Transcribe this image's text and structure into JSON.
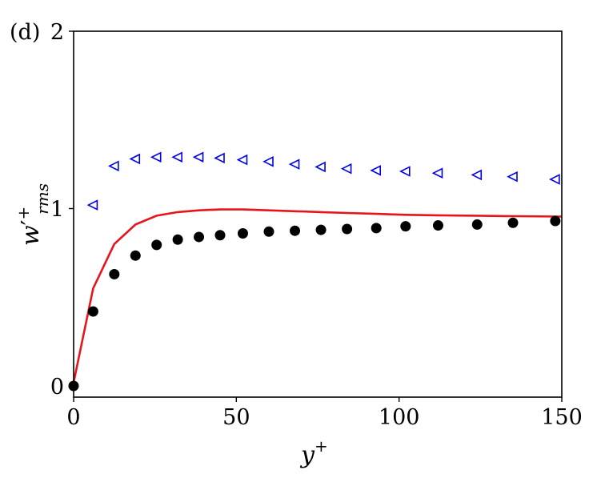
{
  "panel_label": "(d)",
  "chart_data": {
    "type": "scatter",
    "xlabel": "y+",
    "ylabel": "w'+rms",
    "xlim": [
      0,
      150
    ],
    "ylim": [
      -0.05,
      2.0
    ],
    "xticks": [
      0,
      50,
      100,
      150
    ],
    "yticks": [
      0,
      1,
      2
    ],
    "grid": false,
    "legend": "none",
    "series": [
      {
        "style": "line",
        "color": "#e8141c",
        "x": [
          0,
          6,
          12.5,
          19,
          25.5,
          32,
          38.5,
          45,
          52,
          60,
          68,
          76,
          84,
          93,
          102,
          112,
          124,
          136,
          150
        ],
        "y": [
          0.02,
          0.55,
          0.8,
          0.91,
          0.96,
          0.98,
          0.99,
          0.995,
          0.995,
          0.99,
          0.985,
          0.98,
          0.975,
          0.97,
          0.965,
          0.962,
          0.96,
          0.957,
          0.955
        ]
      },
      {
        "style": "marker-circle-filled",
        "color": "#000000",
        "x": [
          0,
          6,
          12.5,
          19,
          25.5,
          32,
          38.5,
          45,
          52,
          60,
          68,
          76,
          84,
          93,
          102,
          112,
          124,
          135,
          148
        ],
        "y": [
          0.0,
          0.42,
          0.63,
          0.735,
          0.795,
          0.825,
          0.84,
          0.85,
          0.86,
          0.87,
          0.875,
          0.88,
          0.885,
          0.89,
          0.9,
          0.905,
          0.91,
          0.92,
          0.93
        ]
      },
      {
        "style": "marker-triangle-left-open",
        "color": "#0000ee",
        "x": [
          6,
          12.5,
          19,
          25.5,
          32,
          38.5,
          45,
          52,
          60,
          68,
          76,
          84,
          93,
          102,
          112,
          124,
          135,
          148
        ],
        "y": [
          1.02,
          1.24,
          1.28,
          1.29,
          1.29,
          1.29,
          1.285,
          1.275,
          1.265,
          1.25,
          1.235,
          1.225,
          1.215,
          1.21,
          1.2,
          1.19,
          1.18,
          1.165
        ]
      }
    ]
  }
}
